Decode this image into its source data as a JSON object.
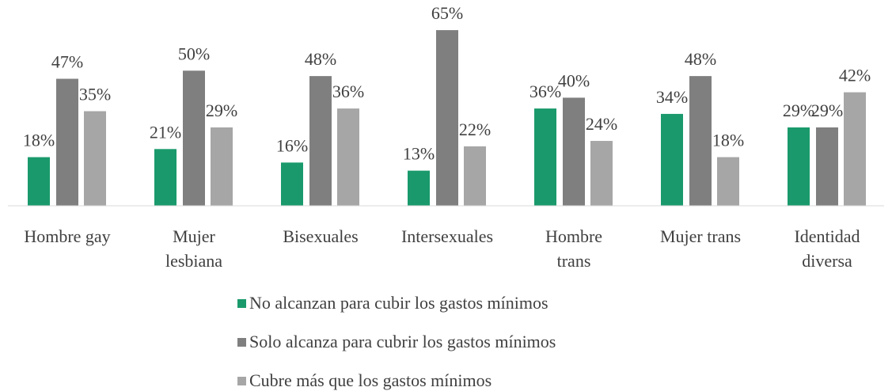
{
  "chart_data": {
    "type": "bar",
    "categories": [
      "Hombre gay",
      "Mujer\nlesbiana",
      "Bisexuales",
      "Intersexuales",
      "Hombre\ntrans",
      "Mujer trans",
      "Identidad\ndiversa"
    ],
    "series": [
      {
        "name": "No alcanzan para cubir los gastos mínimos",
        "color": "#1a9a6c",
        "values": [
          18,
          21,
          16,
          13,
          36,
          34,
          29
        ],
        "value_labels": [
          "18%",
          "21%",
          "16%",
          "13%",
          "36%",
          "34%",
          "29%"
        ]
      },
      {
        "name": "Solo alcanza para cubrir los gastos mínimos",
        "color": "#7f7f7f",
        "values": [
          47,
          50,
          48,
          65,
          40,
          48,
          29
        ],
        "value_labels": [
          "47%",
          "50%",
          "48%",
          "65%",
          "40%",
          "48%",
          "29%"
        ]
      },
      {
        "name": "Cubre más que los gastos mínimos",
        "color": "#a6a6a6",
        "values": [
          35,
          29,
          36,
          22,
          24,
          18,
          42
        ],
        "value_labels": [
          "35%",
          "29%",
          "36%",
          "22%",
          "24%",
          "18%",
          "42%"
        ]
      }
    ],
    "ylim": [
      0,
      70
    ]
  }
}
